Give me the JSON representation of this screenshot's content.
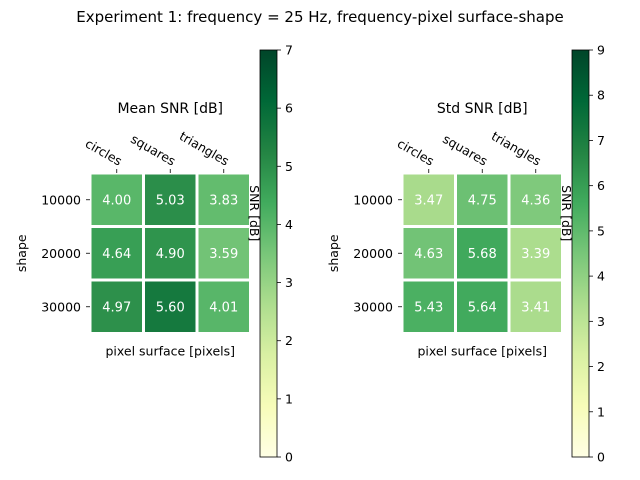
{
  "suptitle": "Experiment 1: frequency = 25 Hz, frequency-pixel surface-shape",
  "chart_data": [
    {
      "type": "heatmap",
      "title": "Mean SNR [dB]",
      "xlabel": "pixel surface [pixels]",
      "ylabel": "shape",
      "x_categories": [
        "circles",
        "squares",
        "triangles"
      ],
      "y_categories": [
        "10000",
        "20000",
        "30000"
      ],
      "values": [
        [
          4.0,
          5.03,
          3.83
        ],
        [
          4.64,
          4.9,
          3.59
        ],
        [
          4.97,
          5.6,
          4.01
        ]
      ],
      "value_labels": [
        [
          "4.00",
          "5.03",
          "3.83"
        ],
        [
          "4.64",
          "4.90",
          "3.59"
        ],
        [
          "4.97",
          "5.60",
          "4.01"
        ]
      ],
      "colormap": "YlGn",
      "vmin": 0,
      "vmax": 7,
      "colorbar_label": "SNR [dB]",
      "colorbar_ticks": [
        "0",
        "1",
        "2",
        "3",
        "4",
        "5",
        "6",
        "7"
      ]
    },
    {
      "type": "heatmap",
      "title": "Std SNR [dB]",
      "xlabel": "pixel surface [pixels]",
      "ylabel": "shape",
      "x_categories": [
        "circles",
        "squares",
        "triangles"
      ],
      "y_categories": [
        "10000",
        "20000",
        "30000"
      ],
      "values": [
        [
          3.47,
          4.75,
          4.36
        ],
        [
          4.63,
          5.68,
          3.39
        ],
        [
          5.43,
          5.64,
          3.41
        ]
      ],
      "value_labels": [
        [
          "3.47",
          "4.75",
          "4.36"
        ],
        [
          "4.63",
          "5.68",
          "3.39"
        ],
        [
          "5.43",
          "5.64",
          "3.41"
        ]
      ],
      "colormap": "YlGn",
      "vmin": 0,
      "vmax": 9,
      "colorbar_label": "SNR [dB]",
      "colorbar_ticks": [
        "0",
        "1",
        "2",
        "3",
        "4",
        "5",
        "6",
        "7",
        "8",
        "9"
      ]
    }
  ]
}
